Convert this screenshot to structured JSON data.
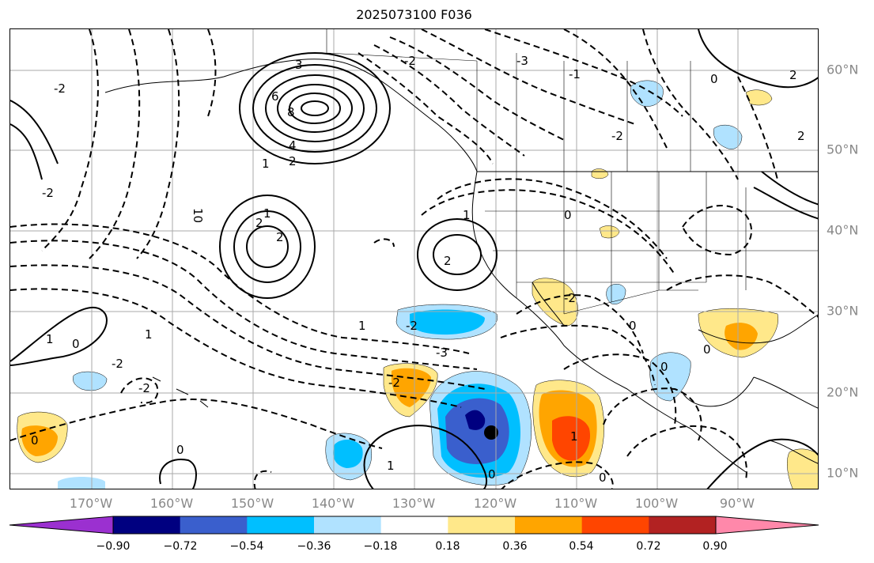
{
  "title": "2025073100 F036",
  "lat_labels": [
    "60°N",
    "50°N",
    "40°N",
    "30°N",
    "20°N",
    "10°N"
  ],
  "lon_labels": [
    "170°W",
    "160°W",
    "150°W",
    "140°W",
    "130°W",
    "120°W",
    "110°W",
    "100°W",
    "90°W"
  ],
  "colorbar": {
    "colors": [
      "#9b30d0",
      "#000080",
      "#3a5fcd",
      "#00bfff",
      "#b0e2ff",
      "#ffffff",
      "#ffe88a",
      "#ffa500",
      "#ff4500",
      "#b22222",
      "#ff88aa"
    ],
    "ticks": [
      "−0.90",
      "−0.72",
      "−0.54",
      "−0.36",
      "−0.18",
      "0.18",
      "0.36",
      "0.54",
      "0.72",
      "0.90"
    ]
  },
  "contour_labels": [
    "0",
    "1",
    "2",
    "3",
    "4",
    "6",
    "8",
    "10",
    "-2",
    "-3",
    "-1"
  ]
}
